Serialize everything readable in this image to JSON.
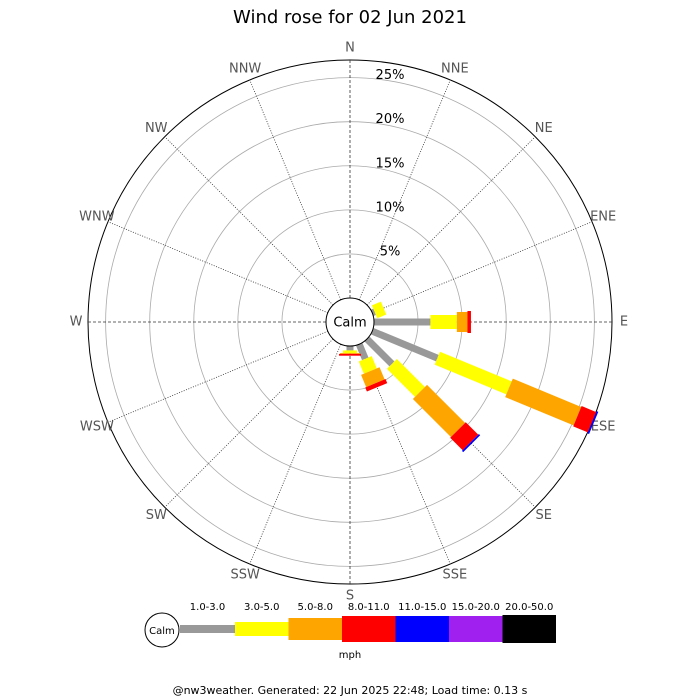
{
  "chart_data": {
    "type": "windrose",
    "title": "Wind rose for 02 Jun 2021",
    "directions": [
      "N",
      "NNE",
      "NE",
      "ENE",
      "E",
      "ESE",
      "SE",
      "SSE",
      "S",
      "SSW",
      "SW",
      "WSW",
      "W",
      "WNW",
      "NW",
      "NNW"
    ],
    "center_label": "Calm",
    "rlim": [
      0,
      27
    ],
    "rticks": [
      {
        "value": 5,
        "label": "5%"
      },
      {
        "value": 10,
        "label": "10%"
      },
      {
        "value": 15,
        "label": "15%"
      },
      {
        "value": 20,
        "label": "20%"
      },
      {
        "value": 25,
        "label": "25%"
      }
    ],
    "unit": "mph",
    "series": [
      {
        "name": "1.0-3.0",
        "color": "#999999",
        "values": [
          0,
          0,
          0,
          0.3,
          6.4,
          8,
          4,
          1.8,
          0.5,
          0,
          0,
          0,
          0,
          0,
          0,
          0
        ]
      },
      {
        "name": "3.0-5.0",
        "color": "#ffff00",
        "values": [
          0,
          0,
          0,
          1.1,
          3,
          8.8,
          4.5,
          1.5,
          0.3,
          0,
          0,
          0,
          0,
          0,
          0,
          0
        ]
      },
      {
        "name": "5.0-8.0",
        "color": "#ffa500",
        "values": [
          0,
          0,
          0,
          0,
          1.2,
          8.4,
          6.1,
          1.5,
          0.1,
          0,
          0,
          0,
          0,
          0,
          0,
          0
        ]
      },
      {
        "name": "8.0-11.0",
        "color": "#ff0000",
        "values": [
          0,
          0,
          0,
          0,
          0.4,
          1.8,
          2,
          0.5,
          0.2,
          0,
          0,
          0,
          0,
          0,
          0,
          0
        ]
      },
      {
        "name": "11.0-15.0",
        "color": "#0000ff",
        "values": [
          0,
          0,
          0,
          0,
          0,
          0.2,
          0.2,
          0,
          0,
          0,
          0,
          0,
          0,
          0,
          0,
          0
        ]
      },
      {
        "name": "15.0-20.0",
        "color": "#a020f0",
        "values": [
          0,
          0,
          0,
          0,
          0,
          0,
          0,
          0,
          0,
          0,
          0,
          0,
          0,
          0,
          0,
          0
        ]
      },
      {
        "name": "20.0-50.0",
        "color": "#000000",
        "values": [
          0,
          0,
          0,
          0,
          0,
          0,
          0,
          0,
          0,
          0,
          0,
          0,
          0,
          0,
          0,
          0
        ]
      }
    ],
    "footer": "@nw3weather. Generated: 22 Jun 2025 22:48; Load time: 0.13 s"
  }
}
